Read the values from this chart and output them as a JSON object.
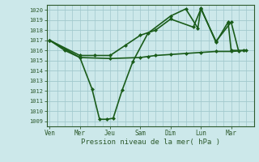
{
  "background_color": "#cce8ea",
  "grid_color": "#a0c8cc",
  "line_color": "#1a5c1a",
  "marker_color": "#1a5c1a",
  "xlabel": "Pression niveau de la mer( hPa )",
  "ylim": [
    1008.5,
    1020.5
  ],
  "yticks": [
    1009,
    1010,
    1011,
    1012,
    1013,
    1014,
    1015,
    1016,
    1017,
    1018,
    1019,
    1020
  ],
  "x_tick_labels": [
    "Ven",
    "Mer",
    "Jeu",
    "Sam",
    "Dim",
    "Lun",
    "Mar"
  ],
  "x_tick_positions": [
    0,
    2,
    4,
    6,
    8,
    10,
    12
  ],
  "xlim": [
    -0.2,
    13.5
  ],
  "series": [
    {
      "x": [
        0,
        1,
        2,
        2.8,
        3.3,
        3.8,
        4.2,
        4.8,
        5.5,
        6.5,
        8,
        9,
        9.8,
        10,
        11,
        11.8,
        12,
        12.8
      ],
      "y": [
        1017,
        1016,
        1015.3,
        1012.2,
        1009.2,
        1009.2,
        1009.3,
        1012.1,
        1014.9,
        1017.7,
        1019.4,
        1020.1,
        1018.2,
        1020.2,
        1016.8,
        1018.8,
        1016.0,
        1016.0
      ]
    },
    {
      "x": [
        0,
        2,
        4,
        6,
        6.5,
        7,
        8,
        9,
        10,
        11,
        12,
        13
      ],
      "y": [
        1017,
        1015.3,
        1015.2,
        1015.3,
        1015.4,
        1015.5,
        1015.6,
        1015.7,
        1015.8,
        1015.9,
        1015.9,
        1016.0
      ]
    },
    {
      "x": [
        0,
        2,
        3,
        4,
        5,
        6,
        7,
        8,
        9.5,
        10,
        11,
        12,
        12.5
      ],
      "y": [
        1017,
        1015.5,
        1015.5,
        1015.5,
        1016.5,
        1017.5,
        1018.0,
        1019.1,
        1018.3,
        1020.1,
        1016.9,
        1018.8,
        1015.9
      ]
    }
  ]
}
